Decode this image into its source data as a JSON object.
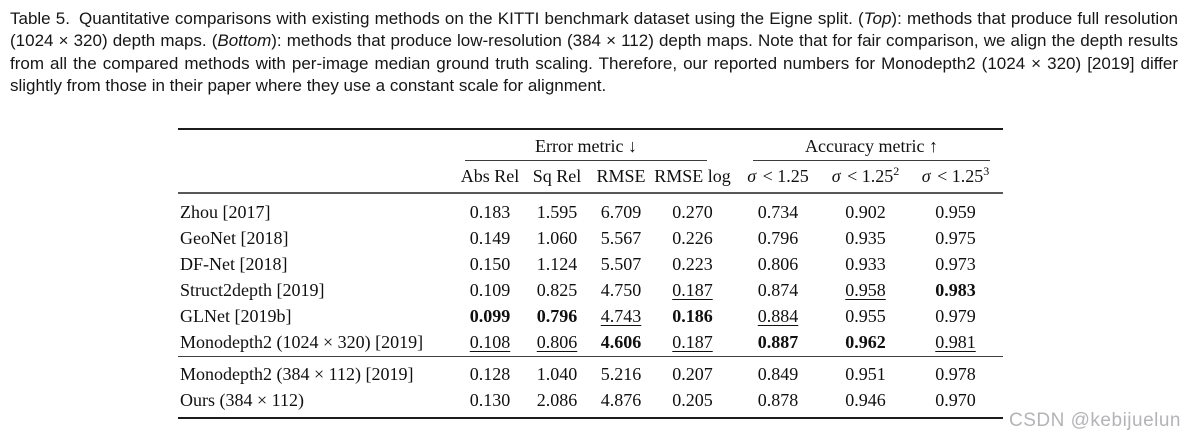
{
  "caption": {
    "label": "Table 5.",
    "segments": [
      "Quantitative comparisons with existing methods on the KITTI benchmark dataset using the Eigne split. (",
      "Top",
      "): methods that produce full resolution (1024 × 320) depth maps. (",
      "Bottom",
      "): methods that produce low-resolution (384 × 112) depth maps. Note that for fair comparison, we align the depth results from all the compared methods with per-image median ground truth scaling. Therefore, our reported numbers for Monodepth2 (1024 × 320) [2019] differ slightly from those in their paper where they use a constant scale for alignment."
    ]
  },
  "table": {
    "group_headers": [
      {
        "label": "Error metric ↓",
        "span": 4
      },
      {
        "label": "Accuracy metric ↑",
        "span": 3
      }
    ],
    "columns": [
      {
        "label": "Abs Rel"
      },
      {
        "label": "Sq Rel"
      },
      {
        "label": "RMSE"
      },
      {
        "label": "RMSE log"
      },
      {
        "sigma": "σ",
        "rel": " < 1.25",
        "sup": ""
      },
      {
        "sigma": "σ",
        "rel": " < 1.25",
        "sup": "2"
      },
      {
        "sigma": "σ",
        "rel": " < 1.25",
        "sup": "3"
      }
    ],
    "sections": [
      {
        "name": "full-resolution (1024 × 320)",
        "rows": [
          {
            "method": "Zhou [2017]",
            "cells": [
              [
                "0.183",
                ""
              ],
              [
                "1.595",
                ""
              ],
              [
                "6.709",
                ""
              ],
              [
                "0.270",
                ""
              ],
              [
                "0.734",
                ""
              ],
              [
                "0.902",
                ""
              ],
              [
                "0.959",
                ""
              ]
            ]
          },
          {
            "method": "GeoNet [2018]",
            "cells": [
              [
                "0.149",
                ""
              ],
              [
                "1.060",
                ""
              ],
              [
                "5.567",
                ""
              ],
              [
                "0.226",
                ""
              ],
              [
                "0.796",
                ""
              ],
              [
                "0.935",
                ""
              ],
              [
                "0.975",
                ""
              ]
            ]
          },
          {
            "method": "DF-Net [2018]",
            "cells": [
              [
                "0.150",
                ""
              ],
              [
                "1.124",
                ""
              ],
              [
                "5.507",
                ""
              ],
              [
                "0.223",
                ""
              ],
              [
                "0.806",
                ""
              ],
              [
                "0.933",
                ""
              ],
              [
                "0.973",
                ""
              ]
            ]
          },
          {
            "method": "Struct2depth [2019]",
            "cells": [
              [
                "0.109",
                ""
              ],
              [
                "0.825",
                ""
              ],
              [
                "4.750",
                ""
              ],
              [
                "0.187",
                "u"
              ],
              [
                "0.874",
                ""
              ],
              [
                "0.958",
                "u"
              ],
              [
                "0.983",
                "b"
              ]
            ]
          },
          {
            "method": "GLNet [2019b]",
            "cells": [
              [
                "0.099",
                "b"
              ],
              [
                "0.796",
                "b"
              ],
              [
                "4.743",
                "u"
              ],
              [
                "0.186",
                "b"
              ],
              [
                "0.884",
                "u"
              ],
              [
                "0.955",
                ""
              ],
              [
                "0.979",
                ""
              ]
            ]
          },
          {
            "method": "Monodepth2 (1024 × 320) [2019]",
            "cells": [
              [
                "0.108",
                "u"
              ],
              [
                "0.806",
                "u"
              ],
              [
                "4.606",
                "b"
              ],
              [
                "0.187",
                "u"
              ],
              [
                "0.887",
                "b"
              ],
              [
                "0.962",
                "b"
              ],
              [
                "0.981",
                "u"
              ]
            ]
          }
        ]
      },
      {
        "name": "low-resolution (384 × 112)",
        "rows": [
          {
            "method": "Monodepth2 (384 × 112) [2019]",
            "cells": [
              [
                "0.128",
                ""
              ],
              [
                "1.040",
                ""
              ],
              [
                "5.216",
                ""
              ],
              [
                "0.207",
                ""
              ],
              [
                "0.849",
                ""
              ],
              [
                "0.951",
                ""
              ],
              [
                "0.978",
                ""
              ]
            ]
          },
          {
            "method": "Ours (384 × 112)",
            "cells": [
              [
                "0.130",
                ""
              ],
              [
                "2.086",
                ""
              ],
              [
                "4.876",
                ""
              ],
              [
                "0.205",
                ""
              ],
              [
                "0.878",
                ""
              ],
              [
                "0.946",
                ""
              ],
              [
                "0.970",
                ""
              ]
            ]
          }
        ]
      }
    ]
  },
  "watermark": {
    "text": "CSDN @kebijuelun",
    "color": "#b4b4b8"
  }
}
